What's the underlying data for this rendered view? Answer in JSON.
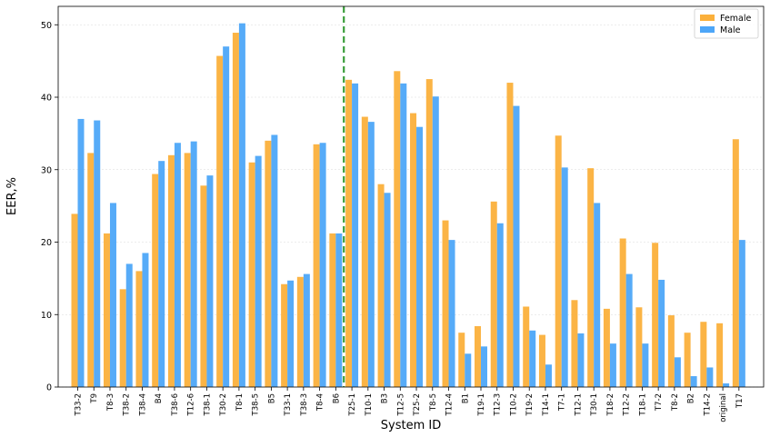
{
  "chart_data": {
    "type": "bar",
    "xlabel": "System ID",
    "ylabel": "EER,%",
    "ylim": [
      0,
      52.5
    ],
    "yticks": [
      0,
      10,
      20,
      30,
      40,
      50
    ],
    "grid": true,
    "legend_position": "top-right",
    "divider": {
      "type": "vertical-dashed",
      "color": "#3a9d3a",
      "after_category": "B6"
    },
    "categories": [
      "T33-2",
      "T9",
      "T8-3",
      "T38-2",
      "T38-4",
      "B4",
      "T38-6",
      "T12-6",
      "T38-1",
      "T30-2",
      "T8-1",
      "T38-5",
      "B5",
      "T33-1",
      "T38-3",
      "T8-4",
      "B6",
      "T25-1",
      "T10-1",
      "B3",
      "T12-5",
      "T25-2",
      "T8-5",
      "T12-4",
      "B1",
      "T19-1",
      "T12-3",
      "T10-2",
      "T19-2",
      "T14-1",
      "T7-1",
      "T12-1",
      "T30-1",
      "T18-2",
      "T12-2",
      "T18-1",
      "T7-2",
      "T8-2",
      "B2",
      "T14-2",
      "original",
      "T17"
    ],
    "series": [
      {
        "name": "Female",
        "color": "#fbb03b",
        "values": [
          23.9,
          32.3,
          21.2,
          13.5,
          16.0,
          29.4,
          32.0,
          32.3,
          27.8,
          45.7,
          48.9,
          31.0,
          34.0,
          14.2,
          15.2,
          33.5,
          21.2,
          42.4,
          37.3,
          28.0,
          43.6,
          37.8,
          42.5,
          23.0,
          7.5,
          8.4,
          25.6,
          42.0,
          11.1,
          7.2,
          34.7,
          12.0,
          30.2,
          10.8,
          20.5,
          11.0,
          19.9,
          9.9,
          7.5,
          9.0,
          8.8,
          34.2
        ]
      },
      {
        "name": "Male",
        "color": "#4da6f8",
        "values": [
          37.0,
          36.8,
          25.4,
          17.0,
          18.5,
          31.2,
          33.7,
          33.9,
          29.2,
          47.0,
          50.2,
          31.9,
          34.8,
          14.7,
          15.6,
          33.7,
          21.2,
          41.9,
          36.6,
          26.8,
          41.9,
          35.9,
          40.1,
          20.3,
          4.6,
          5.6,
          22.6,
          38.8,
          7.8,
          3.1,
          30.3,
          7.4,
          25.4,
          6.0,
          15.6,
          6.0,
          14.8,
          4.1,
          1.5,
          2.7,
          0.5,
          20.3
        ]
      }
    ]
  }
}
